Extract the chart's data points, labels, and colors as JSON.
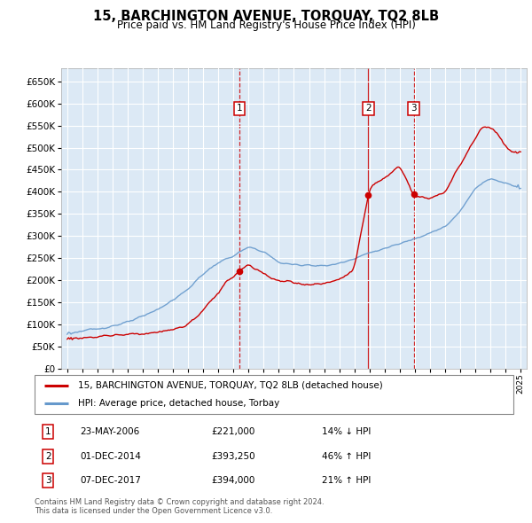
{
  "title": "15, BARCHINGTON AVENUE, TORQUAY, TQ2 8LB",
  "subtitle": "Price paid vs. HM Land Registry's House Price Index (HPI)",
  "plot_bg_color": "#dce9f5",
  "legend_line1": "15, BARCHINGTON AVENUE, TORQUAY, TQ2 8LB (detached house)",
  "legend_line2": "HPI: Average price, detached house, Torbay",
  "transactions": [
    {
      "num": 1,
      "date": "23-MAY-2006",
      "price": "£221,000",
      "pct": "14%",
      "dir": "↓",
      "year_x": 2006.4,
      "price_y": 221000,
      "linestyle": "--"
    },
    {
      "num": 2,
      "date": "01-DEC-2014",
      "price": "£393,250",
      "pct": "46%",
      "dir": "↑",
      "year_x": 2014.92,
      "price_y": 393250,
      "linestyle": "-"
    },
    {
      "num": 3,
      "date": "07-DEC-2017",
      "price": "£394,000",
      "pct": "21%",
      "dir": "↑",
      "year_x": 2017.92,
      "price_y": 394000,
      "linestyle": "--"
    }
  ],
  "footer1": "Contains HM Land Registry data © Crown copyright and database right 2024.",
  "footer2": "This data is licensed under the Open Government Licence v3.0.",
  "red_color": "#cc0000",
  "blue_color": "#6699cc",
  "ylim": [
    0,
    680000
  ],
  "yticks": [
    0,
    50000,
    100000,
    150000,
    200000,
    250000,
    300000,
    350000,
    400000,
    450000,
    500000,
    550000,
    600000,
    650000
  ],
  "xlim_start": 1994.6,
  "xlim_end": 2025.4,
  "hpi_years": [
    1995,
    1996,
    1997,
    1998,
    1999,
    2000,
    2001,
    2002,
    2003,
    2004,
    2005,
    2006,
    2007,
    2008,
    2009,
    2010,
    2011,
    2012,
    2013,
    2014,
    2015,
    2016,
    2017,
    2018,
    2019,
    2020,
    2021,
    2022,
    2023,
    2024,
    2025
  ],
  "hpi_prices": [
    80000,
    85000,
    90000,
    97000,
    105000,
    118000,
    135000,
    155000,
    180000,
    215000,
    240000,
    255000,
    275000,
    265000,
    240000,
    235000,
    235000,
    232000,
    238000,
    250000,
    262000,
    272000,
    282000,
    295000,
    308000,
    320000,
    355000,
    410000,
    430000,
    420000,
    410000
  ],
  "red_years": [
    1995,
    1996,
    1997,
    1998,
    1999,
    2000,
    2001,
    2002,
    2003,
    2004,
    2005,
    2006,
    2006.4,
    2007,
    2008,
    2009,
    2010,
    2011,
    2012,
    2013,
    2014,
    2014.92,
    2015,
    2016,
    2017,
    2017.92,
    2018,
    2019,
    2020,
    2021,
    2022,
    2022.5,
    2023,
    2023.5,
    2024,
    2024.5,
    2025
  ],
  "red_prices": [
    68000,
    70000,
    73000,
    76000,
    78000,
    80000,
    82000,
    88000,
    100000,
    130000,
    175000,
    210000,
    221000,
    235000,
    215000,
    198000,
    195000,
    190000,
    192000,
    200000,
    225000,
    393250,
    410000,
    430000,
    460000,
    394000,
    390000,
    385000,
    400000,
    460000,
    520000,
    550000,
    545000,
    530000,
    500000,
    490000,
    490000
  ]
}
